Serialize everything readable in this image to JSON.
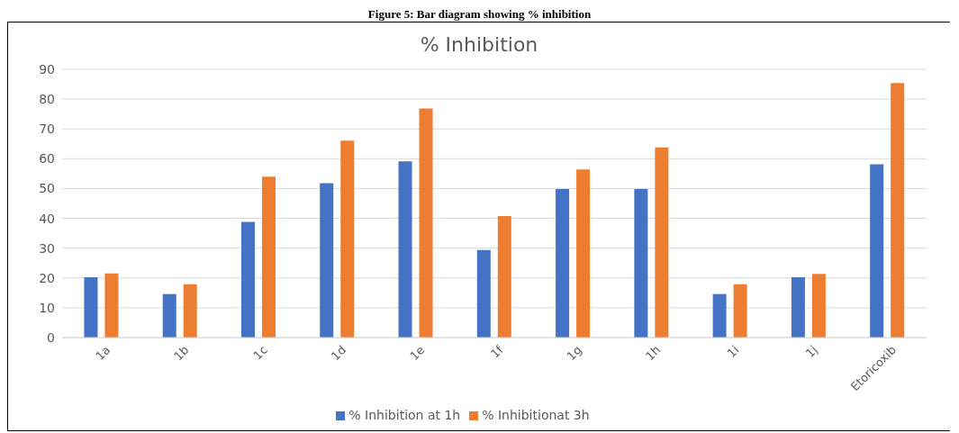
{
  "chart_data": {
    "type": "bar",
    "title": "% Inhibition",
    "annotations": [
      "Figure 5: Bar diagram showing % inhibition"
    ],
    "categories": [
      "1a",
      "1b",
      "1c",
      "1d",
      "1e",
      "1f",
      "1g",
      "1h",
      "1i",
      "1j",
      "Etoricoxib"
    ],
    "series": [
      {
        "name": "% Inhibition at 1h",
        "color": "#4472c4",
        "values": [
          20.2,
          14.6,
          38.8,
          51.8,
          59.1,
          29.4,
          49.8,
          49.8,
          14.6,
          20.2,
          58.1
        ]
      },
      {
        "name": "% Inhibitionat 3h",
        "color": "#ed7d31",
        "values": [
          21.5,
          17.9,
          54,
          66.1,
          76.9,
          40.8,
          56.4,
          63.8,
          17.9,
          21.4,
          85.4
        ]
      }
    ],
    "ylim": [
      0,
      90
    ],
    "yticks": [
      0,
      10,
      20,
      30,
      40,
      50,
      60,
      70,
      80,
      90
    ],
    "grid": "y",
    "legend": "bottom"
  }
}
